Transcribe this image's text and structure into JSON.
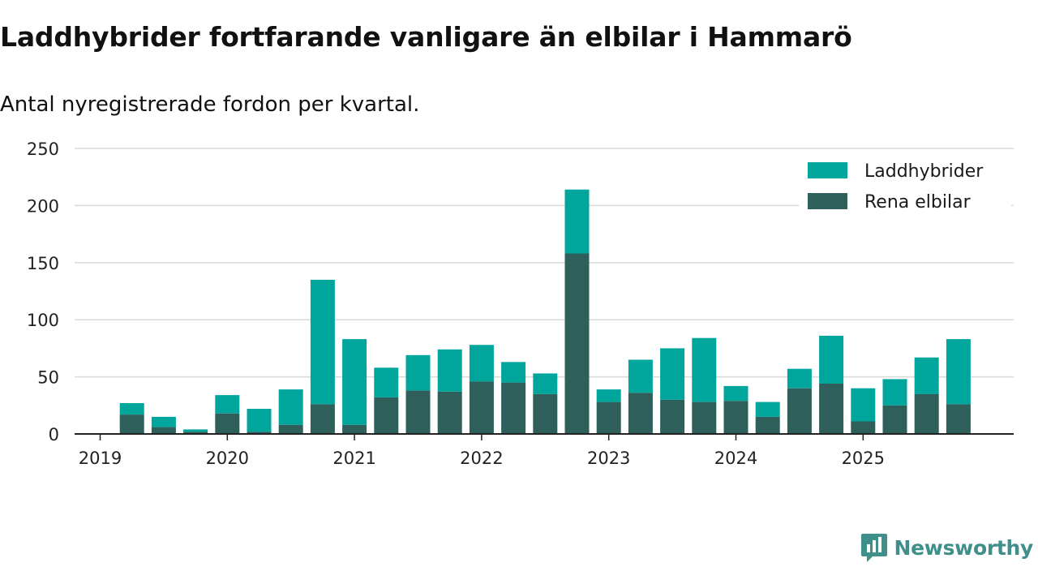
{
  "title": "Laddhybrider fortfarande vanligare än elbilar i Hammarö",
  "subtitle": "Antal nyregistrerade fordon per kvartal.",
  "brand": {
    "name": "Newsworthy",
    "color": "#3f8f8b"
  },
  "chart_data": {
    "type": "bar",
    "stacked": true,
    "title": "Laddhybrider fortfarande vanligare än elbilar i Hammarö",
    "subtitle": "Antal nyregistrerade fordon per kvartal.",
    "xlabel": "",
    "ylabel": "",
    "ylim": [
      0,
      250
    ],
    "yticks": [
      "0",
      "50",
      "100",
      "150",
      "200",
      "250"
    ],
    "xticks": [
      "2019",
      "2020",
      "2021",
      "2022",
      "2023",
      "2024",
      "2025"
    ],
    "grid": true,
    "legend_position": "top-right",
    "categories": [
      "2019 Q1",
      "2019 Q2",
      "2019 Q3",
      "2019 Q4",
      "2020 Q1",
      "2020 Q2",
      "2020 Q3",
      "2020 Q4",
      "2021 Q1",
      "2021 Q2",
      "2021 Q3",
      "2021 Q4",
      "2022 Q1",
      "2022 Q2",
      "2022 Q3",
      "2022 Q4",
      "2023 Q1",
      "2023 Q2",
      "2023 Q3",
      "2023 Q4",
      "2024 Q1",
      "2024 Q2",
      "2024 Q3",
      "2024 Q4",
      "2025 Q1",
      "2025 Q2",
      "2025 Q3",
      "2025 Q4"
    ],
    "series": [
      {
        "name": "Rena elbilar",
        "color": "#2f5f5b",
        "values": [
          0,
          17,
          6,
          2,
          18,
          2,
          8,
          26,
          8,
          32,
          38,
          37,
          46,
          45,
          35,
          158,
          28,
          36,
          30,
          28,
          29,
          15,
          40,
          44,
          11,
          25,
          35,
          26
        ]
      },
      {
        "name": "Laddhybrider",
        "color": "#00a59c",
        "values": [
          0,
          10,
          9,
          2,
          16,
          20,
          31,
          109,
          75,
          26,
          31,
          37,
          32,
          18,
          18,
          56,
          11,
          29,
          45,
          56,
          13,
          13,
          17,
          42,
          29,
          23,
          32,
          57
        ]
      }
    ]
  }
}
